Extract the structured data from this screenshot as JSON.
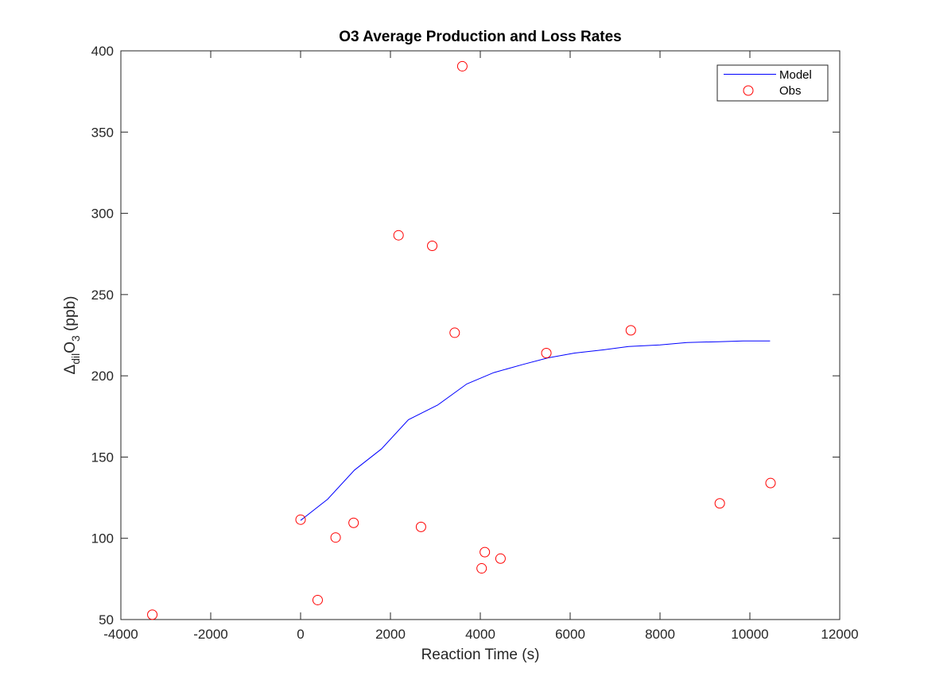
{
  "chart_data": {
    "type": "scatter",
    "title": "O3 Average Production and Loss Rates",
    "xlabel": "Reaction Time (s)",
    "ylabel": {
      "prefix": "Δ",
      "sub1": "dil",
      "main": "O",
      "sub2": "3",
      "suffix": " (ppb)"
    },
    "xlim": [
      -4000,
      12000
    ],
    "ylim": [
      50,
      400
    ],
    "xticks": [
      -4000,
      -2000,
      0,
      2000,
      4000,
      6000,
      8000,
      10000,
      12000
    ],
    "yticks": [
      50,
      100,
      150,
      200,
      250,
      300,
      350,
      400
    ],
    "grid": false,
    "legend_position": "top-right",
    "series": [
      {
        "name": "Model",
        "kind": "line",
        "color": "#0000ff",
        "x": [
          0,
          600,
          1200,
          1800,
          2400,
          3050,
          3700,
          4300,
          4950,
          5500,
          6100,
          6750,
          7300,
          8000,
          8600,
          9300,
          9850,
          10450
        ],
        "y": [
          111,
          124,
          142,
          155,
          173,
          182,
          195,
          202,
          207,
          211,
          214,
          216,
          218,
          219,
          220.5,
          221,
          221.5,
          221.5
        ]
      },
      {
        "name": "Obs",
        "kind": "marker",
        "color": "#ff0000",
        "x": [
          -3300,
          0,
          380,
          780,
          1180,
          2180,
          2680,
          2930,
          3430,
          3600,
          4030,
          4100,
          4450,
          5470,
          7350,
          9330,
          10460
        ],
        "y": [
          53,
          111.5,
          62,
          100.5,
          109.5,
          286.5,
          107,
          280,
          226.5,
          390.5,
          81.5,
          91.5,
          87.5,
          214,
          228,
          121.5,
          134
        ]
      }
    ]
  }
}
